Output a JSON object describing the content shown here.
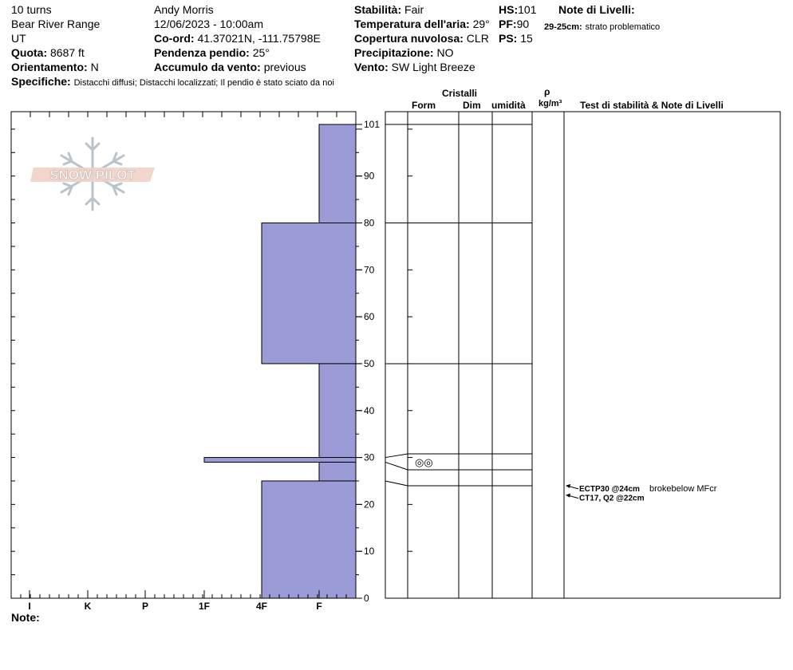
{
  "header": {
    "col1": [
      "10 turns",
      "Bear River Range",
      "UT"
    ],
    "quota_label": "Quota:",
    "quota_value": "8687 ft",
    "orient_label": "Orientamento:",
    "orient_value": "N",
    "observer": "Andy Morris",
    "datetime": "12/06/2023 - 10:00am",
    "coord_label": "Co-ord:",
    "coord_value": "41.37021N, -111.75798E",
    "slope_label": "Pendenza pendio:",
    "slope_value": "25°",
    "wind_load_label": "Accumulo da vento:",
    "wind_load_value": "previous",
    "stability_label": "Stabilità:",
    "stability_value": "Fair",
    "air_temp_label": "Temperatura dell'aria:",
    "air_temp_value": "29°",
    "cloud_label": "Copertura nuvolosa:",
    "cloud_value": "CLR",
    "precip_label": "Precipitazione:",
    "precip_value": "NO",
    "wind_label": "Vento:",
    "wind_value": "SW Light Breeze",
    "hs_label": "HS:",
    "hs_value": "101",
    "pf_label": "PF:",
    "pf_value": "90",
    "ps_label": "PS:",
    "ps_value": "15",
    "layer_notes_label": "Note di Livelli:",
    "layer_note_range": "29-25cm:",
    "layer_note_text": "strato problematico",
    "specifics_label": "Specifiche:",
    "specifics_value": "Distacchi diffusi;  Distacchi localizzati;  Il pendio è stato sciato da noi"
  },
  "logo": {
    "text": "SNOW PILOT"
  },
  "columns": {
    "crystals": "Cristalli",
    "form": "Form",
    "size": "Dim",
    "moisture": "umidità",
    "rho": "ρ",
    "density_unit": "kg/m³",
    "tests": "Test di stabilità & Note di Livelli"
  },
  "chart_data": {
    "type": "bar",
    "ylim": [
      0,
      101
    ],
    "hardness_categories": [
      "I",
      "K",
      "P",
      "1F",
      "4F",
      "F"
    ],
    "y_ticks": [
      0,
      10,
      20,
      30,
      40,
      50,
      60,
      70,
      80,
      90,
      101
    ],
    "layers": [
      {
        "top": 101,
        "bottom": 80,
        "hardness": "F"
      },
      {
        "top": 80,
        "bottom": 50,
        "hardness": "4F"
      },
      {
        "top": 50,
        "bottom": 30,
        "hardness": "F"
      },
      {
        "top": 30,
        "bottom": 29,
        "hardness": "1F"
      },
      {
        "top": 29,
        "bottom": 25,
        "hardness": "F"
      },
      {
        "top": 25,
        "bottom": 0,
        "hardness": "4F"
      }
    ],
    "grain_form": {
      "height": 29,
      "symbol": "◎◎"
    },
    "tests": [
      {
        "height": 24,
        "code": "ECTP30 @24cm",
        "note": "brokebelow MFcr"
      },
      {
        "height": 22,
        "code": "CT17, Q2 @22cm",
        "note": ""
      }
    ],
    "colors": {
      "layer_fill": "#9b9bd7",
      "layer_stroke": "#000000"
    }
  },
  "footer": {
    "notes_label": "Note:"
  }
}
